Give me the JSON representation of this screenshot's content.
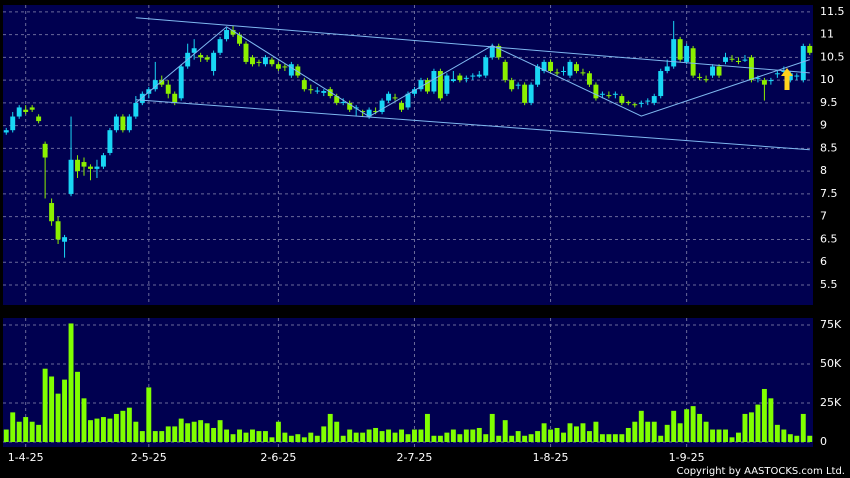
{
  "chart_data": [
    {
      "type": "candlestick",
      "categories": [
        null,
        null,
        null,
        "1-4-25",
        null,
        null,
        null,
        null,
        null,
        null,
        null,
        null,
        null,
        null,
        null,
        null,
        null,
        null,
        null,
        null,
        null,
        null,
        "2-5-25",
        null,
        null,
        null,
        null,
        null,
        null,
        null,
        null,
        null,
        null,
        null,
        null,
        null,
        null,
        null,
        null,
        null,
        null,
        null,
        "2-6-25",
        null,
        null,
        null,
        null,
        null,
        null,
        null,
        null,
        null,
        null,
        null,
        null,
        null,
        null,
        null,
        null,
        null,
        null,
        null,
        null,
        "2-7-25",
        null,
        null,
        null,
        null,
        null,
        null,
        null,
        null,
        null,
        null,
        null,
        null,
        null,
        null,
        null,
        null,
        null,
        null,
        null,
        null,
        "1-8-25",
        null,
        null,
        null,
        null,
        null,
        null,
        null,
        null,
        null,
        null,
        null,
        null,
        null,
        null,
        null,
        null,
        null,
        null,
        null,
        null,
        "1-9-25",
        null,
        null,
        null,
        null,
        null,
        null,
        null,
        null,
        null,
        null,
        null,
        null,
        null,
        null,
        null,
        null,
        null,
        null,
        null
      ],
      "open": [
        8.85,
        8.9,
        9.2,
        9.35,
        9.4,
        9.2,
        8.6,
        7.3,
        6.9,
        6.45,
        7.5,
        8.25,
        8.2,
        8.1,
        8.05,
        8.1,
        8.4,
        8.9,
        9.2,
        8.9,
        9.2,
        9.5,
        9.7,
        9.8,
        10.0,
        9.9,
        9.7,
        9.6,
        10.3,
        10.6,
        10.55,
        10.5,
        10.2,
        10.6,
        10.9,
        11.1,
        11.0,
        10.8,
        10.5,
        10.4,
        10.35,
        10.45,
        10.35,
        10.3,
        10.1,
        10.3,
        10.0,
        9.8,
        9.75,
        9.72,
        9.8,
        9.65,
        9.5,
        9.5,
        9.38,
        9.32,
        9.2,
        9.32,
        9.3,
        9.55,
        9.62,
        9.5,
        9.4,
        9.7,
        9.8,
        10.0,
        9.75,
        10.2,
        9.7,
        9.98,
        10.1,
        10.03,
        10.08,
        10.08,
        10.1,
        10.5,
        10.75,
        10.4,
        10.0,
        9.88,
        9.9,
        9.5,
        9.9,
        10.2,
        10.4,
        10.17,
        10.18,
        10.1,
        10.35,
        10.17,
        10.15,
        9.9,
        9.68,
        9.67,
        9.68,
        9.65,
        9.52,
        9.47,
        9.48,
        9.53,
        9.5,
        9.65,
        10.2,
        10.3,
        10.9,
        10.4,
        10.7,
        10.07,
        10.02,
        10.1,
        10.3,
        10.4,
        10.47,
        10.42,
        10.43,
        10.5,
        10.03,
        10.0,
        9.98,
        10.13,
        10.18,
        10.0,
        10.08,
        10.0,
        10.75
      ],
      "high": [
        8.95,
        9.3,
        9.45,
        9.45,
        9.45,
        9.25,
        8.65,
        7.4,
        7.0,
        6.6,
        9.2,
        8.35,
        8.3,
        8.15,
        8.25,
        8.4,
        8.95,
        9.25,
        9.25,
        9.25,
        9.65,
        9.75,
        9.85,
        10.4,
        10.1,
        10.0,
        9.75,
        10.35,
        10.8,
        10.9,
        10.6,
        10.55,
        10.65,
        10.95,
        11.15,
        11.2,
        11.05,
        10.85,
        10.55,
        10.45,
        10.55,
        10.5,
        10.4,
        10.35,
        10.4,
        10.35,
        10.05,
        9.9,
        9.85,
        9.8,
        9.85,
        9.7,
        9.6,
        9.55,
        9.45,
        9.35,
        9.4,
        9.4,
        9.6,
        9.75,
        9.7,
        9.55,
        9.75,
        9.85,
        10.05,
        10.05,
        10.25,
        10.25,
        10.15,
        10.2,
        10.15,
        10.1,
        10.15,
        10.2,
        10.55,
        10.8,
        10.8,
        10.45,
        10.05,
        9.95,
        9.95,
        9.95,
        10.35,
        10.45,
        10.45,
        10.25,
        10.3,
        10.45,
        10.4,
        10.25,
        10.2,
        9.95,
        9.75,
        9.75,
        9.75,
        9.7,
        9.55,
        9.5,
        9.55,
        9.6,
        9.7,
        10.25,
        10.45,
        11.3,
        10.95,
        10.8,
        10.75,
        10.15,
        10.1,
        10.35,
        10.35,
        10.6,
        10.55,
        10.5,
        10.55,
        10.55,
        10.1,
        10.05,
        10.05,
        10.2,
        10.3,
        10.2,
        10.15,
        10.8,
        10.8
      ],
      "low": [
        8.8,
        8.85,
        9.15,
        9.25,
        9.3,
        9.05,
        7.4,
        6.8,
        6.4,
        6.1,
        7.45,
        7.85,
        7.9,
        7.8,
        7.85,
        8.05,
        8.35,
        8.85,
        8.85,
        8.85,
        9.15,
        9.45,
        9.6,
        9.75,
        9.85,
        9.6,
        9.45,
        9.55,
        10.25,
        10.45,
        10.4,
        10.4,
        10.1,
        10.55,
        10.85,
        10.95,
        10.75,
        10.35,
        10.3,
        10.3,
        10.3,
        10.3,
        10.2,
        10.2,
        10.05,
        10.05,
        9.75,
        9.7,
        9.7,
        9.65,
        9.6,
        9.45,
        9.45,
        9.3,
        9.2,
        9.2,
        9.15,
        9.25,
        9.25,
        9.5,
        9.55,
        9.3,
        9.35,
        9.65,
        9.75,
        9.7,
        9.7,
        9.55,
        9.65,
        9.95,
        9.95,
        9.95,
        10.0,
        10.05,
        10.05,
        10.45,
        10.45,
        9.95,
        9.75,
        9.8,
        9.45,
        9.45,
        9.85,
        10.15,
        10.15,
        10.1,
        10.1,
        10.05,
        10.15,
        10.1,
        9.85,
        9.55,
        9.6,
        9.6,
        9.6,
        9.45,
        9.45,
        9.4,
        9.4,
        9.45,
        9.45,
        9.6,
        10.15,
        10.25,
        10.4,
        10.35,
        10.05,
        10.0,
        9.95,
        10.05,
        10.05,
        10.35,
        10.4,
        10.35,
        10.4,
        9.95,
        9.95,
        9.55,
        9.9,
        10.05,
        10.1,
        9.95,
        10.0,
        9.95,
        10.55
      ],
      "close": [
        8.9,
        9.2,
        9.4,
        9.3,
        9.35,
        9.1,
        8.3,
        6.9,
        6.5,
        6.55,
        8.25,
        8.0,
        8.1,
        8.05,
        8.1,
        8.35,
        8.9,
        9.2,
        8.9,
        9.2,
        9.5,
        9.7,
        9.8,
        10.0,
        9.9,
        9.7,
        9.5,
        10.3,
        10.6,
        10.7,
        10.5,
        10.45,
        10.6,
        10.9,
        11.1,
        11.0,
        10.8,
        10.4,
        10.35,
        10.38,
        10.5,
        10.35,
        10.25,
        10.28,
        10.35,
        10.1,
        9.8,
        9.78,
        9.77,
        9.76,
        9.65,
        9.5,
        9.52,
        9.35,
        9.4,
        9.3,
        9.35,
        9.3,
        9.55,
        9.7,
        9.6,
        9.35,
        9.7,
        9.8,
        10.0,
        9.75,
        10.2,
        9.6,
        10.1,
        10.02,
        10.0,
        10.05,
        10.1,
        10.12,
        10.5,
        10.75,
        10.5,
        10.0,
        9.8,
        9.9,
        9.5,
        9.9,
        10.3,
        10.4,
        10.2,
        10.15,
        10.2,
        10.4,
        10.2,
        10.15,
        9.9,
        9.6,
        9.7,
        9.65,
        9.7,
        9.5,
        9.5,
        9.45,
        9.5,
        9.55,
        9.65,
        10.2,
        10.3,
        10.9,
        10.45,
        10.75,
        10.1,
        10.05,
        10.0,
        10.3,
        10.1,
        10.5,
        10.45,
        10.4,
        10.45,
        10.0,
        10.05,
        9.9,
        10.0,
        10.15,
        10.2,
        10.15,
        10.1,
        10.75,
        10.6
      ],
      "up_color": "#19d7f5",
      "down_color": "#8cf000",
      "ylim": [
        5.06,
        11.65
      ],
      "yticks": [
        5.5,
        6,
        6.5,
        7,
        7.5,
        8,
        8.5,
        9,
        9.5,
        10,
        10.5,
        11,
        11.5
      ],
      "trendlines": [
        {
          "color": "#7fb8f0",
          "x": [
            20,
            124
          ],
          "y": [
            11.37,
            10.16
          ]
        },
        {
          "color": "#7fb8f0",
          "x": [
            20,
            124
          ],
          "y": [
            9.57,
            8.47
          ]
        },
        {
          "color": "#7fb8f0",
          "x": [
            20,
            34,
            56,
            75,
            98,
            124
          ],
          "y": [
            9.5,
            11.17,
            9.2,
            10.76,
            9.21,
            10.45
          ]
        }
      ]
    },
    {
      "type": "bar",
      "color": "#80ff00",
      "values": [
        8000,
        19000,
        13000,
        16000,
        13000,
        11000,
        47000,
        42000,
        31000,
        40000,
        76000,
        45000,
        28000,
        14000,
        15000,
        16000,
        15000,
        18000,
        20000,
        22000,
        13000,
        7000,
        35000,
        7000,
        7000,
        10000,
        10000,
        15000,
        12000,
        13000,
        14000,
        12000,
        9000,
        14000,
        8000,
        5000,
        8000,
        6000,
        8000,
        7000,
        7000,
        3000,
        13000,
        6000,
        4000,
        5000,
        3000,
        6000,
        4000,
        10000,
        18000,
        13000,
        4000,
        8000,
        6000,
        6000,
        8000,
        9000,
        7000,
        8000,
        6000,
        8000,
        5000,
        8000,
        8000,
        18000,
        4000,
        4000,
        6000,
        8000,
        5000,
        8000,
        8000,
        9000,
        5000,
        18000,
        4000,
        14000,
        4000,
        7000,
        4000,
        5000,
        7000,
        12000,
        8000,
        9000,
        6000,
        12000,
        10000,
        12000,
        7000,
        13000,
        5000,
        5000,
        5000,
        5000,
        9000,
        13000,
        20000,
        13000,
        13000,
        4000,
        11000,
        20000,
        12000,
        21000,
        23000,
        18000,
        13000,
        8000,
        8000,
        8000,
        3000,
        6000,
        18000,
        19000,
        24000,
        34000,
        28000,
        11000,
        8000,
        5000,
        4000,
        18000,
        4000
      ],
      "ylim": [
        -3200,
        79500
      ],
      "yticks": [
        0,
        {
          "value": 25000,
          "label": "25K"
        },
        {
          "value": 50000,
          "label": "50K"
        },
        {
          "value": 75000,
          "label": "75K"
        }
      ]
    }
  ],
  "footer": "Copyright by AASTOCKS.com Ltd."
}
